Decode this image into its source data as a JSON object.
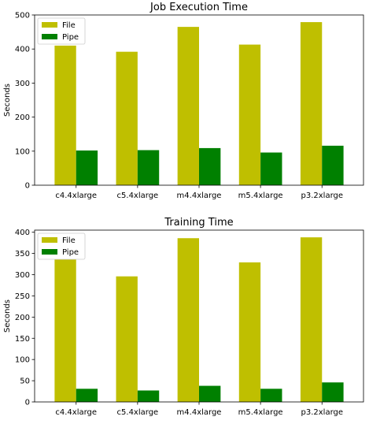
{
  "chart_data": [
    {
      "type": "bar",
      "title": "Job Execution Time",
      "xlabel": "",
      "ylabel": "Seconds",
      "categories": [
        "c4.4xlarge",
        "c5.4xlarge",
        "m4.4xlarge",
        "m5.4xlarge",
        "p3.2xlarge"
      ],
      "series": [
        {
          "name": "File",
          "color": "#bfbf00",
          "values": [
            410,
            392,
            465,
            413,
            479
          ]
        },
        {
          "name": "Pipe",
          "color": "#008000",
          "values": [
            102,
            103,
            109,
            96,
            116
          ]
        }
      ],
      "ylim": [
        0,
        500
      ],
      "yticks": [
        0,
        100,
        200,
        300,
        400,
        500
      ],
      "grid": false,
      "legend": "top-left"
    },
    {
      "type": "bar",
      "title": "Training Time",
      "xlabel": "",
      "ylabel": "Seconds",
      "categories": [
        "c4.4xlarge",
        "c5.4xlarge",
        "m4.4xlarge",
        "m5.4xlarge",
        "p3.2xlarge"
      ],
      "series": [
        {
          "name": "File",
          "color": "#bfbf00",
          "values": [
            336,
            296,
            386,
            329,
            388
          ]
        },
        {
          "name": "Pipe",
          "color": "#008000",
          "values": [
            31,
            27,
            38,
            31,
            46
          ]
        }
      ],
      "ylim": [
        0,
        405
      ],
      "yticks": [
        0,
        50,
        100,
        150,
        200,
        250,
        300,
        350,
        400
      ],
      "grid": false,
      "legend": "top-left"
    }
  ]
}
